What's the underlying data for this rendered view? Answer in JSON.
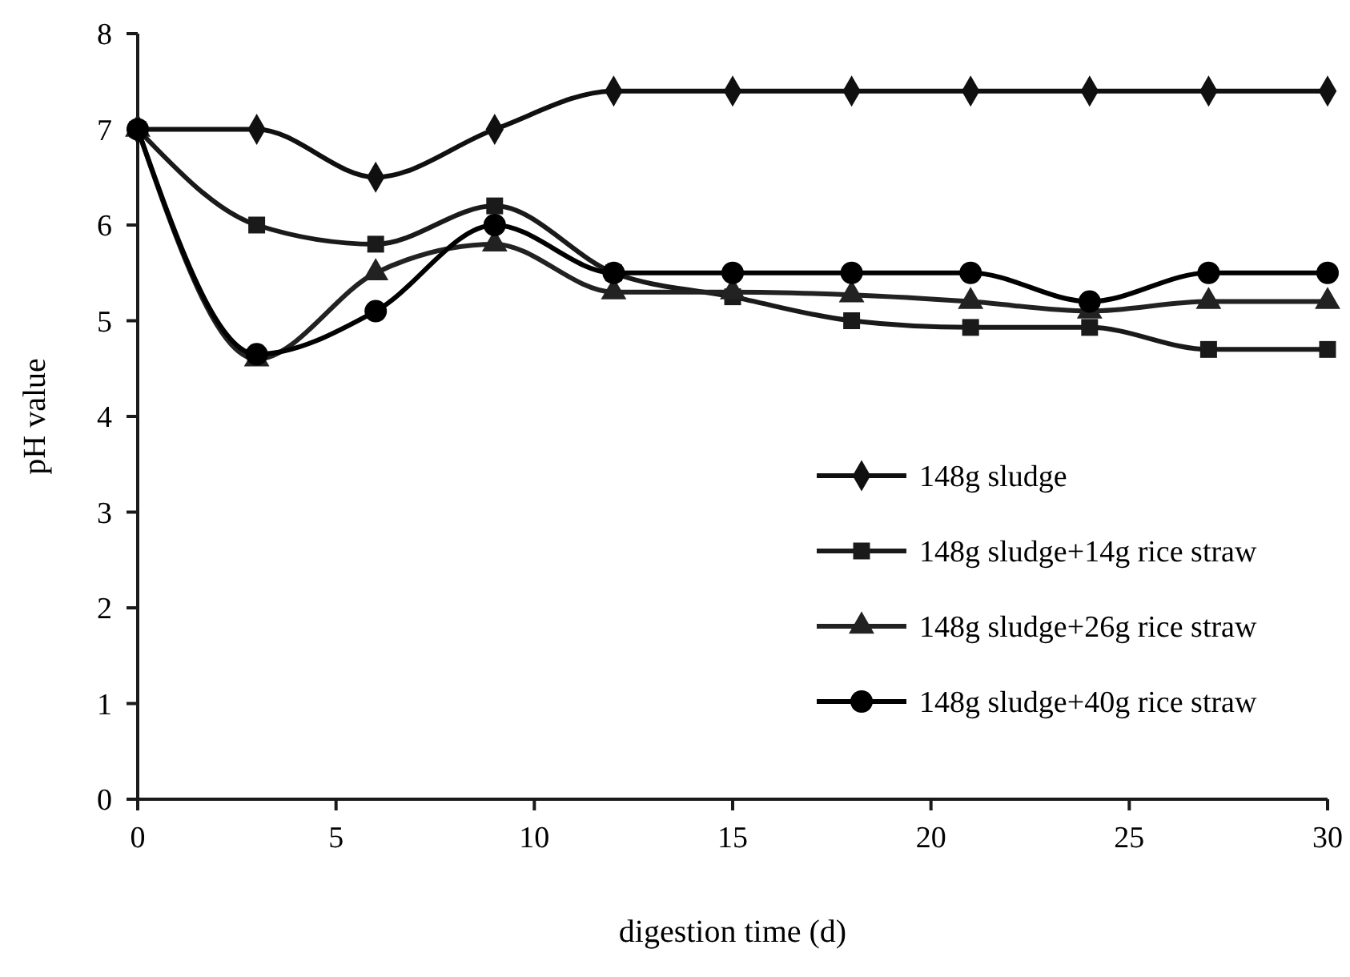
{
  "chart_data": {
    "type": "line",
    "xlabel": "digestion time (d)",
    "ylabel": "pH value",
    "x": [
      0,
      3,
      6,
      9,
      12,
      15,
      18,
      21,
      24,
      27,
      30
    ],
    "xlim": [
      0,
      30
    ],
    "xticks": [
      0,
      5,
      10,
      15,
      20,
      25,
      30
    ],
    "ylim": [
      0,
      8
    ],
    "yticks": [
      0,
      1,
      2,
      3,
      4,
      5,
      6,
      7,
      8
    ],
    "grid": false,
    "legend": "bottom right",
    "line_style": "solid",
    "series": [
      {
        "name": "148g sludge",
        "color": "#101010",
        "marker": "diamond",
        "values": [
          7,
          7,
          6.5,
          7,
          7.4,
          7.4,
          7.4,
          7.4,
          7.4,
          7.4,
          7.4
        ]
      },
      {
        "name": "148g sludge+14g rice straw",
        "color": "#1a1a1a",
        "marker": "square",
        "values": [
          7,
          6,
          5.8,
          6.2,
          5.5,
          5.25,
          5,
          4.93,
          4.93,
          4.7,
          4.7
        ]
      },
      {
        "name": "148g sludge+26g rice straw",
        "color": "#222222",
        "marker": "triangle",
        "values": [
          7,
          4.6,
          5.5,
          5.8,
          5.3,
          5.3,
          5.27,
          5.2,
          5.1,
          5.2,
          5.2
        ]
      },
      {
        "name": "148g sludge+40g rice straw",
        "color": "#000000",
        "marker": "circle",
        "values": [
          7,
          4.65,
          5.1,
          6,
          5.5,
          5.5,
          5.5,
          5.5,
          5.2,
          5.5,
          5.5
        ]
      }
    ]
  }
}
